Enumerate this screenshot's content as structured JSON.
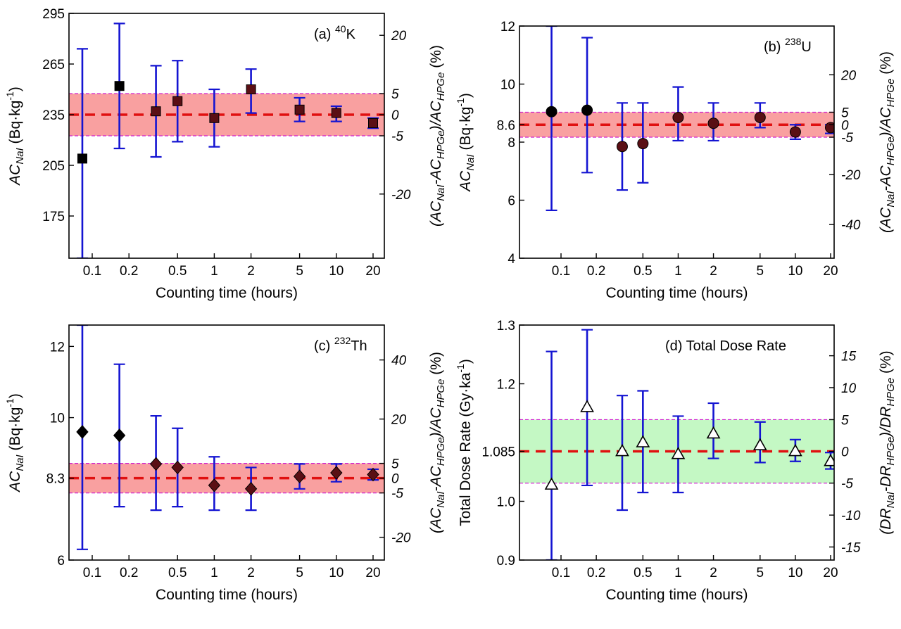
{
  "x_ticks": [
    "0.1",
    "0.2",
    "0.5",
    "1",
    "2",
    "5",
    "10",
    "20"
  ],
  "x_tick_values": [
    0.1,
    0.2,
    0.5,
    1,
    2,
    5,
    10,
    20
  ],
  "colors": {
    "errorbar": "#1414d2",
    "ref": "#e01010",
    "band_pink": "#f9a0a0",
    "band_green": "#c4f8c4",
    "band_edge": "#d020d0",
    "marker_dark": "#5a0f14"
  },
  "chart_data": [
    {
      "type": "scatter",
      "panel": "(a)",
      "label_text": "(a)",
      "isotope_mass": "40",
      "isotope_symbol": "K",
      "xlabel": "Counting time (hours)",
      "ylabel": {
        "base": "AC",
        "sub": "NaI",
        "units": "(Bq·kg",
        "sup": "-1",
        ")": ")"
      },
      "y2label": "(AC_NaI-AC_HPGe)/AC_HPGe (%)",
      "y2label_parts": [
        "(AC",
        "NaI",
        "-AC",
        "HPGe",
        ")/AC",
        "HPGe",
        " (%)"
      ],
      "ylim": [
        150,
        295
      ],
      "yticks": [
        "295",
        "265",
        "235",
        "205",
        "175"
      ],
      "ytick_values": [
        295,
        265,
        235,
        205,
        175
      ],
      "reference": 235,
      "band": [
        222.5,
        247.5
      ],
      "y2ticks": [
        "20",
        "5",
        "0",
        "-5",
        "-20"
      ],
      "y2tick_values": [
        20,
        5,
        0,
        -5,
        -20
      ],
      "marker": "square",
      "points": [
        {
          "x": 0.083,
          "y": 209,
          "lo": 150,
          "hi": 274
        },
        {
          "x": 0.167,
          "y": 252,
          "lo": 215,
          "hi": 289
        },
        {
          "x": 0.333,
          "y": 237,
          "lo": 210,
          "hi": 264
        },
        {
          "x": 0.5,
          "y": 243,
          "lo": 219,
          "hi": 267
        },
        {
          "x": 1,
          "y": 233,
          "lo": 216,
          "hi": 250
        },
        {
          "x": 2,
          "y": 250,
          "lo": 236,
          "hi": 262
        },
        {
          "x": 5,
          "y": 238,
          "lo": 231,
          "hi": 245
        },
        {
          "x": 10,
          "y": 236,
          "lo": 231,
          "hi": 240
        },
        {
          "x": 20,
          "y": 230,
          "lo": 227,
          "hi": 233
        }
      ]
    },
    {
      "type": "scatter",
      "panel": "(b)",
      "label_text": "(b)",
      "isotope_mass": "238",
      "isotope_symbol": "U",
      "xlabel": "Counting time (hours)",
      "ylabel": {
        "base": "AC",
        "sub": "NaI",
        "units": "(Bq·kg",
        "sup": "-1",
        ")": ")"
      },
      "y2label_parts": [
        "(AC",
        "NaI",
        "-AC",
        "HPGe",
        ")/AC",
        "HPGe",
        " (%)"
      ],
      "ylim": [
        4,
        12
      ],
      "yticks": [
        "12",
        "10",
        "8.6",
        "8",
        "6",
        "4"
      ],
      "ytick_values": [
        12,
        10,
        8.6,
        8,
        6,
        4
      ],
      "reference": 8.6,
      "band": [
        8.17,
        9.03
      ],
      "y2ticks": [
        "20",
        "5",
        "0",
        "-5",
        "-20",
        "-40"
      ],
      "y2tick_values": [
        20,
        5,
        0,
        -5,
        -20,
        -40
      ],
      "marker": "circle",
      "points": [
        {
          "x": 0.083,
          "y": 9.05,
          "lo": 5.65,
          "hi": 12
        },
        {
          "x": 0.167,
          "y": 9.1,
          "lo": 6.95,
          "hi": 11.6
        },
        {
          "x": 0.333,
          "y": 7.85,
          "lo": 6.35,
          "hi": 9.35
        },
        {
          "x": 0.5,
          "y": 7.95,
          "lo": 6.6,
          "hi": 9.35
        },
        {
          "x": 1,
          "y": 8.85,
          "lo": 8.05,
          "hi": 9.9
        },
        {
          "x": 2,
          "y": 8.65,
          "lo": 8.05,
          "hi": 9.35
        },
        {
          "x": 5,
          "y": 8.85,
          "lo": 8.5,
          "hi": 9.35
        },
        {
          "x": 10,
          "y": 8.35,
          "lo": 8.1,
          "hi": 8.6
        },
        {
          "x": 20,
          "y": 8.5,
          "lo": 8.3,
          "hi": 8.6
        }
      ]
    },
    {
      "type": "scatter",
      "panel": "(c)",
      "label_text": "(c)",
      "isotope_mass": "232",
      "isotope_symbol": "Th",
      "xlabel": "Counting time (hours)",
      "ylabel": {
        "base": "AC",
        "sub": "NaI",
        "units": "(Bq·kg",
        "sup": "-1",
        ")": ")"
      },
      "y2label_parts": [
        "(AC",
        "NaI",
        "-AC",
        "HPGe",
        ")/AC",
        "HPGe",
        " (%)"
      ],
      "ylim": [
        6,
        12.6
      ],
      "yticks": [
        "12",
        "10",
        "8.3",
        "6"
      ],
      "ytick_values": [
        12,
        10,
        8.3,
        6
      ],
      "reference": 8.3,
      "band": [
        7.885,
        8.715
      ],
      "y2ticks": [
        "40",
        "20",
        "5",
        "0",
        "-5",
        "-20"
      ],
      "y2tick_values": [
        40,
        20,
        5,
        0,
        -5,
        -20
      ],
      "marker": "diamond",
      "points": [
        {
          "x": 0.083,
          "y": 9.6,
          "lo": 6.3,
          "hi": 12.6
        },
        {
          "x": 0.167,
          "y": 9.5,
          "lo": 7.5,
          "hi": 11.5
        },
        {
          "x": 0.333,
          "y": 8.7,
          "lo": 7.4,
          "hi": 10.05
        },
        {
          "x": 0.5,
          "y": 8.6,
          "lo": 7.5,
          "hi": 9.7
        },
        {
          "x": 1,
          "y": 8.1,
          "lo": 7.4,
          "hi": 8.9
        },
        {
          "x": 2,
          "y": 8.0,
          "lo": 7.4,
          "hi": 8.6
        },
        {
          "x": 5,
          "y": 8.35,
          "lo": 8.0,
          "hi": 8.7
        },
        {
          "x": 10,
          "y": 8.45,
          "lo": 8.2,
          "hi": 8.7
        },
        {
          "x": 20,
          "y": 8.4,
          "lo": 8.25,
          "hi": 8.55
        }
      ]
    },
    {
      "type": "scatter",
      "panel": "(d)",
      "label_text": "(d)",
      "title": "Total Dose Rate",
      "xlabel": "Counting time (hours)",
      "ylabel_text": "Total Dose Rate (Gy·ka",
      "ylabel_sup": "-1",
      "ylabel_close": ")",
      "y2label_parts": [
        "(DR",
        "NaI",
        "-DR",
        "HPGe",
        ")/DR",
        "HPGe",
        " (%)"
      ],
      "ylim": [
        0.9,
        1.3
      ],
      "yticks": [
        "1.3",
        "1.2",
        "1.085",
        "1.0",
        "0.9"
      ],
      "ytick_values": [
        1.3,
        1.2,
        1.085,
        1.0,
        0.9
      ],
      "reference": 1.085,
      "band": [
        1.031,
        1.139
      ],
      "y2ticks": [
        "15",
        "10",
        "5",
        "0",
        "-5",
        "-10",
        "-15"
      ],
      "y2tick_values": [
        15,
        10,
        5,
        0,
        -5,
        -10,
        -15
      ],
      "marker": "triangle",
      "points": [
        {
          "x": 0.083,
          "y": 1.028,
          "lo": 0.9,
          "hi": 1.255
        },
        {
          "x": 0.167,
          "y": 1.16,
          "lo": 1.027,
          "hi": 1.292
        },
        {
          "x": 0.333,
          "y": 1.085,
          "lo": 0.985,
          "hi": 1.18
        },
        {
          "x": 0.5,
          "y": 1.1,
          "lo": 1.015,
          "hi": 1.188
        },
        {
          "x": 1,
          "y": 1.08,
          "lo": 1.015,
          "hi": 1.145
        },
        {
          "x": 2,
          "y": 1.115,
          "lo": 1.073,
          "hi": 1.167
        },
        {
          "x": 5,
          "y": 1.095,
          "lo": 1.066,
          "hi": 1.135
        },
        {
          "x": 10,
          "y": 1.085,
          "lo": 1.068,
          "hi": 1.105
        },
        {
          "x": 20,
          "y": 1.068,
          "lo": 1.055,
          "hi": 1.083
        }
      ]
    }
  ]
}
